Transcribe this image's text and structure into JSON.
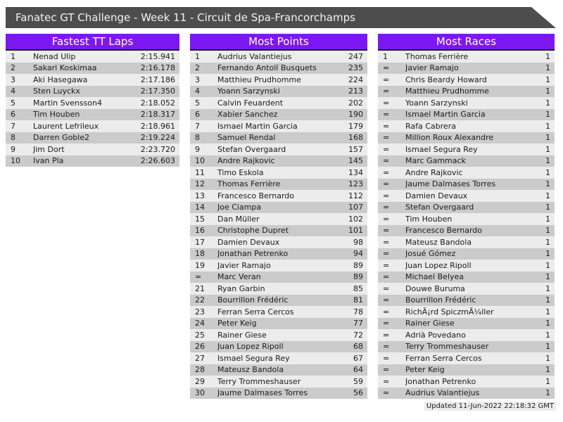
{
  "header": {
    "title": "Fanatec GT Challenge - Week 11 - Circuit de Spa-Francorchamps"
  },
  "colors": {
    "accent_purple": "#7d17f2",
    "title_bar_gray": "#4d4d4d",
    "row_odd": "#ececec",
    "row_even": "#cbcbcb"
  },
  "footer": {
    "updated": "Updated 11-Jun-2022 22:18:32 GMT"
  },
  "tables": [
    {
      "title": "Fastest TT Laps",
      "rows": [
        {
          "rank": "1",
          "name": "Nenad Ulip",
          "value": "2:15.941"
        },
        {
          "rank": "2",
          "name": "Sakari Koskimaa",
          "value": "2:16.178"
        },
        {
          "rank": "3",
          "name": "Aki Hasegawa",
          "value": "2:17.186"
        },
        {
          "rank": "4",
          "name": "Sten Luyckx",
          "value": "2:17.350"
        },
        {
          "rank": "5",
          "name": "Martin Svensson4",
          "value": "2:18.052"
        },
        {
          "rank": "6",
          "name": "Tim Houben",
          "value": "2:18.317"
        },
        {
          "rank": "7",
          "name": "Laurent Lefrileux",
          "value": "2:18.961"
        },
        {
          "rank": "8",
          "name": "Darren Goble2",
          "value": "2:19.224"
        },
        {
          "rank": "9",
          "name": "Jim Dort",
          "value": "2:23.720"
        },
        {
          "rank": "10",
          "name": "Ivan Pla",
          "value": "2:26.603"
        }
      ]
    },
    {
      "title": "Most Points",
      "rows": [
        {
          "rank": "1",
          "name": "Audrius Valantiejus",
          "value": "247"
        },
        {
          "rank": "2",
          "name": "Fernando Antolí Busquets",
          "value": "235"
        },
        {
          "rank": "3",
          "name": "Matthieu Prudhomme",
          "value": "224"
        },
        {
          "rank": "4",
          "name": "Yoann Sarzynski",
          "value": "213"
        },
        {
          "rank": "5",
          "name": "Calvin Feuardent",
          "value": "202"
        },
        {
          "rank": "6",
          "name": "Xabier Sanchez",
          "value": "190"
        },
        {
          "rank": "7",
          "name": "Ismael Martin Garcia",
          "value": "179"
        },
        {
          "rank": "8",
          "name": "Samuel Rendal",
          "value": "168"
        },
        {
          "rank": "9",
          "name": "Stefan Overgaard",
          "value": "157"
        },
        {
          "rank": "10",
          "name": "Andre Rajkovic",
          "value": "145"
        },
        {
          "rank": "11",
          "name": "Timo Eskola",
          "value": "134"
        },
        {
          "rank": "12",
          "name": "Thomas Ferrière",
          "value": "123"
        },
        {
          "rank": "13",
          "name": "Francesco Bernardo",
          "value": "112"
        },
        {
          "rank": "14",
          "name": "Joe Ciampa",
          "value": "107"
        },
        {
          "rank": "15",
          "name": "Dan Müller",
          "value": "102"
        },
        {
          "rank": "16",
          "name": "Christophe Dupret",
          "value": "101"
        },
        {
          "rank": "17",
          "name": "Damien Devaux",
          "value": "98"
        },
        {
          "rank": "18",
          "name": "Jonathan Petrenko",
          "value": "94"
        },
        {
          "rank": "19",
          "name": "Javier Ramajo",
          "value": "89"
        },
        {
          "rank": "=",
          "name": "Marc Veran",
          "value": "89"
        },
        {
          "rank": "21",
          "name": "Ryan Garbin",
          "value": "85"
        },
        {
          "rank": "22",
          "name": "Bourrillon Frédéric",
          "value": "81"
        },
        {
          "rank": "23",
          "name": "Ferran Serra Cercos",
          "value": "78"
        },
        {
          "rank": "24",
          "name": "Peter Keig",
          "value": "77"
        },
        {
          "rank": "25",
          "name": "Rainer Giese",
          "value": "72"
        },
        {
          "rank": "26",
          "name": "Juan Lopez Ripoll",
          "value": "68"
        },
        {
          "rank": "27",
          "name": "Ismael Segura Rey",
          "value": "67"
        },
        {
          "rank": "28",
          "name": "Mateusz Bandola",
          "value": "64"
        },
        {
          "rank": "29",
          "name": "Terry Trommeshauser",
          "value": "59"
        },
        {
          "rank": "30",
          "name": "Jaume Dalmases Torres",
          "value": "56"
        }
      ]
    },
    {
      "title": "Most Races",
      "rows": [
        {
          "rank": "1",
          "name": "Thomas Ferrière",
          "value": "1"
        },
        {
          "rank": "=",
          "name": "Javier Ramajo",
          "value": "1"
        },
        {
          "rank": "=",
          "name": "Chris Beardy Howard",
          "value": "1"
        },
        {
          "rank": "=",
          "name": "Matthieu Prudhomme",
          "value": "1"
        },
        {
          "rank": "=",
          "name": "Yoann Sarzynski",
          "value": "1"
        },
        {
          "rank": "=",
          "name": "Ismael Martin Garcia",
          "value": "1"
        },
        {
          "rank": "=",
          "name": "Rafa Cabrera",
          "value": "1"
        },
        {
          "rank": "=",
          "name": "Million Roux Alexandre",
          "value": "1"
        },
        {
          "rank": "=",
          "name": "Ismael Segura Rey",
          "value": "1"
        },
        {
          "rank": "=",
          "name": "Marc Gammack",
          "value": "1"
        },
        {
          "rank": "=",
          "name": "Andre Rajkovic",
          "value": "1"
        },
        {
          "rank": "=",
          "name": "Jaume Dalmases Torres",
          "value": "1"
        },
        {
          "rank": "=",
          "name": "Damien Devaux",
          "value": "1"
        },
        {
          "rank": "=",
          "name": "Stefan Overgaard",
          "value": "1"
        },
        {
          "rank": "=",
          "name": "Tim Houben",
          "value": "1"
        },
        {
          "rank": "=",
          "name": "Francesco Bernardo",
          "value": "1"
        },
        {
          "rank": "=",
          "name": "Mateusz Bandola",
          "value": "1"
        },
        {
          "rank": "=",
          "name": "Josué Gómez",
          "value": "1"
        },
        {
          "rank": "=",
          "name": "Juan Lopez Ripoll",
          "value": "1"
        },
        {
          "rank": "=",
          "name": "Michael Belyea",
          "value": "1"
        },
        {
          "rank": "=",
          "name": "Douwe Buruma",
          "value": "1"
        },
        {
          "rank": "=",
          "name": "Bourrillon Frédéric",
          "value": "1"
        },
        {
          "rank": "=",
          "name": "RichÃ¡rd SpiczmÃ¼ller",
          "value": "1"
        },
        {
          "rank": "=",
          "name": "Rainer Giese",
          "value": "1"
        },
        {
          "rank": "=",
          "name": "Adrià Povedano",
          "value": "1"
        },
        {
          "rank": "=",
          "name": "Terry Trommeshauser",
          "value": "1"
        },
        {
          "rank": "=",
          "name": "Ferran Serra Cercos",
          "value": "1"
        },
        {
          "rank": "=",
          "name": "Peter Keig",
          "value": "1"
        },
        {
          "rank": "=",
          "name": "Jonathan Petrenko",
          "value": "1"
        },
        {
          "rank": "=",
          "name": "Audrius Valantiejus",
          "value": "1"
        }
      ]
    }
  ]
}
